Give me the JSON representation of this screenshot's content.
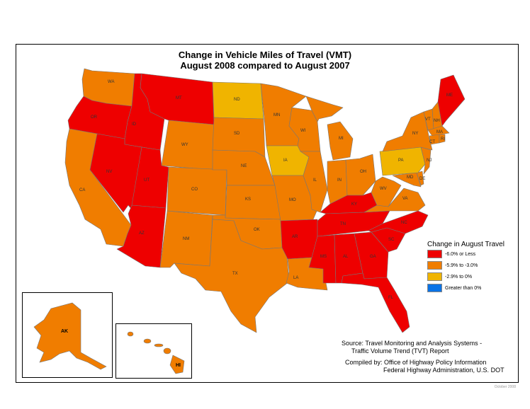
{
  "title_line1": "Change in Vehicle Miles of Travel (VMT)",
  "title_line2": "August 2008 compared to August 2007",
  "colors": {
    "red": "#ee0000",
    "orange": "#f07d00",
    "yellow": "#f0b400",
    "blue": "#0a73e6"
  },
  "legend": {
    "title": "Change in August Travel",
    "items": [
      {
        "label": "-6.0% or Less",
        "color": "#ee0000"
      },
      {
        "label": "-5.9% to -3.0%",
        "color": "#f07d00"
      },
      {
        "label": "-2.9% to 0%",
        "color": "#f0b400"
      },
      {
        "label": "Greater than 0%",
        "color": "#0a73e6"
      }
    ]
  },
  "source": {
    "line1": "Source: Travel Monitoring and Analysis Systems -",
    "line2": "Traffic Volume Trend (TVT) Report",
    "line3": "Compiled by: Office of Highway Policy Information",
    "line4": "Federal Highway Administration, U.S. DOT"
  },
  "footnote": "October 2008",
  "states": {
    "WA": "orange",
    "OR": "red",
    "CA": "orange",
    "ID": "red",
    "NV": "red",
    "MT": "red",
    "WY": "orange",
    "UT": "red",
    "AZ": "red",
    "CO": "orange",
    "NM": "orange",
    "ND": "yellow",
    "SD": "orange",
    "NE": "orange",
    "KS": "orange",
    "OK": "orange",
    "TX": "orange",
    "MN": "orange",
    "IA": "yellow",
    "MO": "orange",
    "AR": "red",
    "LA": "orange",
    "WI": "orange",
    "IL": "orange",
    "MI": "orange",
    "IN": "orange",
    "OH": "orange",
    "KY": "red",
    "TN": "red",
    "MS": "red",
    "AL": "red",
    "GA": "red",
    "FL": "red",
    "SC": "red",
    "NC": "red",
    "VA": "orange",
    "WV": "orange",
    "MD": "orange",
    "DE": "orange",
    "PA": "yellow",
    "NY": "orange",
    "VT": "orange",
    "NH": "orange",
    "ME": "red",
    "MA": "orange",
    "CT": "orange",
    "RI": "orange",
    "NJ": "orange",
    "AK": "orange",
    "HI": "orange"
  }
}
